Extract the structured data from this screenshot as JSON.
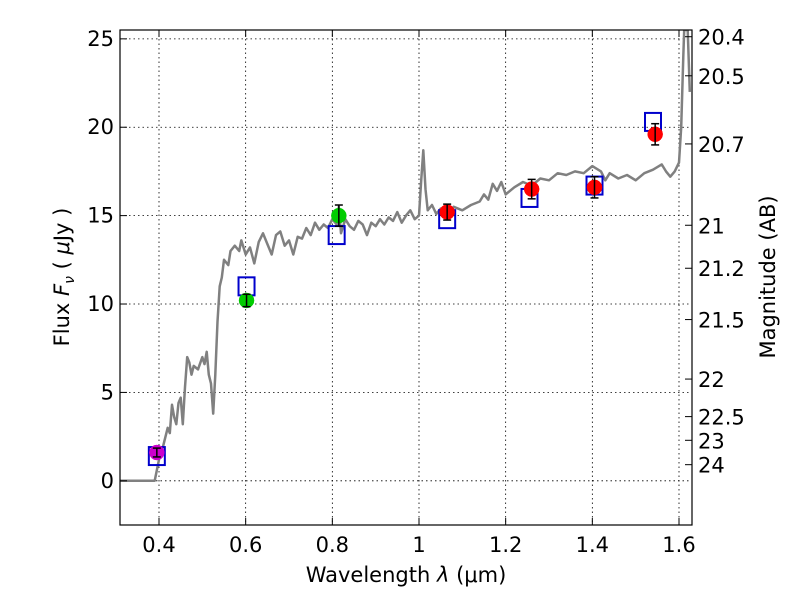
{
  "chart_data": {
    "type": "scatter",
    "xlabel": "Wavelength  λ (μm)",
    "ylabel": "Flux  F_ν  ( μJy )",
    "ylabel_parts": {
      "prefix": "Flux  ",
      "symbol": "F",
      "subscript": "ν",
      "paren_open": "  ( ",
      "mu": "μ",
      "unit": "Jy",
      "paren_close": " )"
    },
    "xlabel_parts": {
      "prefix": "Wavelength  ",
      "symbol": "λ",
      "unit": " (μm)"
    },
    "y2label": "Magnitude (AB)",
    "xlim": [
      0.31,
      1.63
    ],
    "ylim": [
      -2.5,
      25.5
    ],
    "grid": true,
    "x_ticks": [
      {
        "value": 0.4,
        "label": "0.4"
      },
      {
        "value": 0.6,
        "label": "0.6"
      },
      {
        "value": 0.8,
        "label": "0.8"
      },
      {
        "value": 1.0,
        "label": "1"
      },
      {
        "value": 1.2,
        "label": "1.2"
      },
      {
        "value": 1.4,
        "label": "1.4"
      },
      {
        "value": 1.6,
        "label": "1.6"
      }
    ],
    "y_ticks": [
      {
        "value": 0,
        "label": "0"
      },
      {
        "value": 5,
        "label": "5"
      },
      {
        "value": 10,
        "label": "10"
      },
      {
        "value": 15,
        "label": "15"
      },
      {
        "value": 20,
        "label": "20"
      },
      {
        "value": 25,
        "label": "25"
      }
    ],
    "y2_ticks": [
      {
        "mag": 20.4,
        "label": "20.4"
      },
      {
        "mag": 20.5,
        "label": "20.5"
      },
      {
        "mag": 20.7,
        "label": "20.7"
      },
      {
        "mag": 21,
        "label": "21"
      },
      {
        "mag": 21.2,
        "label": "21.2"
      },
      {
        "mag": 21.5,
        "label": "21.5"
      },
      {
        "mag": 22,
        "label": "22"
      },
      {
        "mag": 22.5,
        "label": "22.5"
      },
      {
        "mag": 23,
        "label": "23"
      },
      {
        "mag": 24,
        "label": "24"
      }
    ],
    "series": [
      {
        "name": "model-spectrum",
        "kind": "line",
        "color": "#808080",
        "points": [
          [
            0.31,
            0.0
          ],
          [
            0.39,
            0.0
          ],
          [
            0.4,
            1.2
          ],
          [
            0.41,
            2.0
          ],
          [
            0.42,
            3.0
          ],
          [
            0.425,
            2.7
          ],
          [
            0.43,
            4.3
          ],
          [
            0.435,
            3.6
          ],
          [
            0.44,
            3.2
          ],
          [
            0.445,
            4.4
          ],
          [
            0.45,
            4.7
          ],
          [
            0.455,
            3.2
          ],
          [
            0.46,
            5.3
          ],
          [
            0.465,
            7.0
          ],
          [
            0.47,
            6.7
          ],
          [
            0.475,
            6.0
          ],
          [
            0.48,
            6.5
          ],
          [
            0.49,
            6.3
          ],
          [
            0.5,
            7.0
          ],
          [
            0.505,
            6.6
          ],
          [
            0.51,
            7.3
          ],
          [
            0.515,
            6.0
          ],
          [
            0.52,
            5.5
          ],
          [
            0.525,
            3.8
          ],
          [
            0.53,
            6.0
          ],
          [
            0.535,
            9.0
          ],
          [
            0.54,
            11.0
          ],
          [
            0.545,
            11.5
          ],
          [
            0.55,
            12.5
          ],
          [
            0.56,
            12.2
          ],
          [
            0.565,
            13.0
          ],
          [
            0.575,
            13.3
          ],
          [
            0.585,
            13.0
          ],
          [
            0.59,
            13.6
          ],
          [
            0.6,
            12.8
          ],
          [
            0.61,
            13.2
          ],
          [
            0.62,
            12.3
          ],
          [
            0.63,
            13.5
          ],
          [
            0.64,
            14.0
          ],
          [
            0.65,
            13.4
          ],
          [
            0.66,
            12.8
          ],
          [
            0.67,
            13.9
          ],
          [
            0.68,
            14.1
          ],
          [
            0.69,
            13.3
          ],
          [
            0.7,
            13.6
          ],
          [
            0.71,
            12.8
          ],
          [
            0.72,
            13.8
          ],
          [
            0.73,
            13.7
          ],
          [
            0.74,
            14.3
          ],
          [
            0.75,
            13.9
          ],
          [
            0.76,
            14.6
          ],
          [
            0.77,
            14.2
          ],
          [
            0.78,
            14.5
          ],
          [
            0.79,
            14.3
          ],
          [
            0.8,
            14.8
          ],
          [
            0.81,
            14.5
          ],
          [
            0.815,
            15.5
          ],
          [
            0.82,
            14.0
          ],
          [
            0.83,
            14.8
          ],
          [
            0.84,
            14.4
          ],
          [
            0.85,
            14.2
          ],
          [
            0.86,
            14.7
          ],
          [
            0.87,
            14.5
          ],
          [
            0.88,
            13.9
          ],
          [
            0.89,
            14.6
          ],
          [
            0.9,
            14.4
          ],
          [
            0.91,
            14.8
          ],
          [
            0.92,
            14.5
          ],
          [
            0.93,
            14.9
          ],
          [
            0.94,
            14.7
          ],
          [
            0.95,
            15.2
          ],
          [
            0.96,
            14.6
          ],
          [
            0.97,
            15.0
          ],
          [
            0.98,
            15.3
          ],
          [
            0.99,
            14.8
          ],
          [
            1.0,
            15.0
          ],
          [
            1.005,
            17.0
          ],
          [
            1.01,
            18.7
          ],
          [
            1.015,
            16.5
          ],
          [
            1.02,
            15.3
          ],
          [
            1.03,
            15.6
          ],
          [
            1.04,
            15.1
          ],
          [
            1.05,
            15.4
          ],
          [
            1.07,
            15.0
          ],
          [
            1.08,
            15.5
          ],
          [
            1.1,
            15.3
          ],
          [
            1.12,
            15.6
          ],
          [
            1.14,
            15.8
          ],
          [
            1.15,
            16.2
          ],
          [
            1.16,
            15.9
          ],
          [
            1.17,
            16.8
          ],
          [
            1.18,
            16.4
          ],
          [
            1.19,
            16.9
          ],
          [
            1.2,
            16.2
          ],
          [
            1.22,
            16.6
          ],
          [
            1.24,
            16.9
          ],
          [
            1.26,
            16.7
          ],
          [
            1.28,
            17.1
          ],
          [
            1.3,
            17.0
          ],
          [
            1.32,
            17.4
          ],
          [
            1.34,
            17.3
          ],
          [
            1.36,
            17.5
          ],
          [
            1.38,
            17.4
          ],
          [
            1.4,
            17.8
          ],
          [
            1.42,
            17.5
          ],
          [
            1.43,
            17.0
          ],
          [
            1.44,
            17.4
          ],
          [
            1.46,
            17.1
          ],
          [
            1.48,
            17.3
          ],
          [
            1.5,
            17.0
          ],
          [
            1.52,
            17.4
          ],
          [
            1.54,
            17.6
          ],
          [
            1.56,
            17.9
          ],
          [
            1.57,
            17.5
          ],
          [
            1.58,
            17.2
          ],
          [
            1.59,
            17.5
          ],
          [
            1.6,
            18.0
          ],
          [
            1.605,
            20.0
          ],
          [
            1.61,
            24.0
          ],
          [
            1.612,
            25.5
          ],
          [
            1.62,
            25.5
          ],
          [
            1.625,
            22.0
          ]
        ]
      },
      {
        "name": "model-photometry",
        "kind": "open-square",
        "color": "#0000cc",
        "points": [
          [
            0.395,
            1.4
          ],
          [
            0.602,
            11.0
          ],
          [
            0.81,
            13.9
          ],
          [
            1.065,
            14.8
          ],
          [
            1.255,
            16.0
          ],
          [
            1.405,
            16.7
          ],
          [
            1.54,
            20.3
          ]
        ]
      },
      {
        "name": "observed-u",
        "kind": "filled-circle",
        "color": "#cc00cc",
        "points": [
          [
            0.395,
            1.6
          ]
        ],
        "errors": [
          0.25
        ]
      },
      {
        "name": "observed-optical",
        "kind": "filled-circle",
        "color": "#00cc00",
        "points": [
          [
            0.602,
            10.2
          ],
          [
            0.815,
            15.0
          ]
        ],
        "errors": [
          0.35,
          0.6
        ]
      },
      {
        "name": "observed-nir",
        "kind": "filled-circle",
        "color": "#ff0000",
        "points": [
          [
            1.065,
            15.2
          ],
          [
            1.26,
            16.5
          ],
          [
            1.405,
            16.6
          ],
          [
            1.545,
            19.6
          ]
        ],
        "errors": [
          0.45,
          0.55,
          0.6,
          0.6
        ]
      }
    ]
  }
}
